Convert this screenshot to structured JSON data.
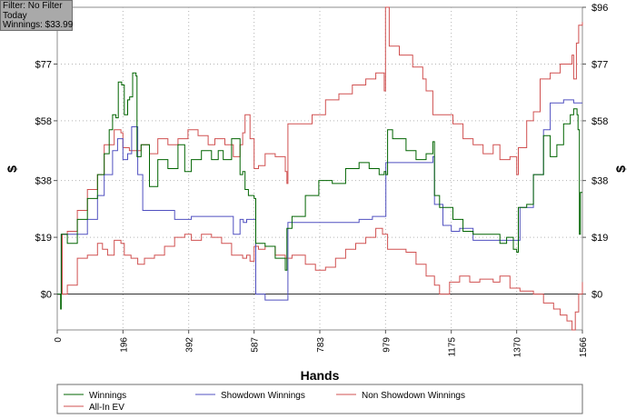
{
  "filter_box": {
    "line1": "Filter: No Filter",
    "line2": "Today",
    "line3": "Winnings: $33.99"
  },
  "chart_data": {
    "type": "line",
    "xlabel": "Hands",
    "ylabel": "$",
    "xlim": [
      0,
      1566
    ],
    "ylim": [
      -12,
      96
    ],
    "x_ticks": [
      0,
      196,
      392,
      587,
      783,
      979,
      1175,
      1370,
      1566
    ],
    "y_ticks": [
      0,
      19,
      38,
      58,
      77,
      96
    ],
    "y_tick_labels": [
      "$0",
      "$19",
      "$38",
      "$58",
      "$77",
      "$96"
    ],
    "grid": true,
    "legend_position": "bottom",
    "series": [
      {
        "name": "Winnings",
        "color": "#006400",
        "points": [
          [
            0,
            0
          ],
          [
            10,
            -5
          ],
          [
            12,
            20
          ],
          [
            30,
            17
          ],
          [
            60,
            25
          ],
          [
            90,
            32
          ],
          [
            120,
            40
          ],
          [
            140,
            47
          ],
          [
            155,
            55
          ],
          [
            165,
            60
          ],
          [
            175,
            59
          ],
          [
            182,
            71
          ],
          [
            192,
            70
          ],
          [
            200,
            60
          ],
          [
            210,
            65
          ],
          [
            216,
            66
          ],
          [
            225,
            74
          ],
          [
            235,
            73
          ],
          [
            238,
            46
          ],
          [
            250,
            50
          ],
          [
            275,
            36
          ],
          [
            300,
            45
          ],
          [
            330,
            42
          ],
          [
            360,
            50
          ],
          [
            380,
            41
          ],
          [
            400,
            45
          ],
          [
            430,
            48
          ],
          [
            460,
            45
          ],
          [
            480,
            48
          ],
          [
            495,
            45
          ],
          [
            520,
            52
          ],
          [
            545,
            40
          ],
          [
            553,
            41
          ],
          [
            560,
            35
          ],
          [
            570,
            33
          ],
          [
            587,
            32
          ],
          [
            592,
            17
          ],
          [
            620,
            16
          ],
          [
            650,
            12
          ],
          [
            680,
            8
          ],
          [
            685,
            22
          ],
          [
            700,
            26
          ],
          [
            740,
            33
          ],
          [
            780,
            38
          ],
          [
            820,
            37
          ],
          [
            860,
            42
          ],
          [
            900,
            44
          ],
          [
            930,
            42
          ],
          [
            960,
            40
          ],
          [
            975,
            41
          ],
          [
            980,
            40
          ],
          [
            985,
            55
          ],
          [
            1000,
            52
          ],
          [
            1040,
            48
          ],
          [
            1070,
            45
          ],
          [
            1100,
            47
          ],
          [
            1120,
            51
          ],
          [
            1125,
            33
          ],
          [
            1140,
            29
          ],
          [
            1180,
            25
          ],
          [
            1210,
            21
          ],
          [
            1240,
            20
          ],
          [
            1280,
            20
          ],
          [
            1320,
            17
          ],
          [
            1340,
            19
          ],
          [
            1360,
            15
          ],
          [
            1370,
            14
          ],
          [
            1375,
            29
          ],
          [
            1400,
            30
          ],
          [
            1420,
            40
          ],
          [
            1450,
            53
          ],
          [
            1470,
            46
          ],
          [
            1490,
            50
          ],
          [
            1510,
            57
          ],
          [
            1530,
            60
          ],
          [
            1540,
            62
          ],
          [
            1550,
            60
          ],
          [
            1553,
            55
          ],
          [
            1557,
            20
          ],
          [
            1560,
            34
          ],
          [
            1566,
            34
          ]
        ]
      },
      {
        "name": "Showdown Winnings",
        "color": "#5050c0",
        "points": [
          [
            0,
            0
          ],
          [
            12,
            20
          ],
          [
            30,
            20
          ],
          [
            60,
            20
          ],
          [
            90,
            25
          ],
          [
            120,
            33
          ],
          [
            140,
            40
          ],
          [
            165,
            48
          ],
          [
            180,
            52
          ],
          [
            192,
            52
          ],
          [
            196,
            45
          ],
          [
            210,
            47
          ],
          [
            222,
            56
          ],
          [
            235,
            56
          ],
          [
            240,
            40
          ],
          [
            255,
            28
          ],
          [
            300,
            28
          ],
          [
            350,
            25
          ],
          [
            400,
            26
          ],
          [
            450,
            26
          ],
          [
            500,
            26
          ],
          [
            525,
            20
          ],
          [
            545,
            25
          ],
          [
            555,
            24
          ],
          [
            565,
            25
          ],
          [
            575,
            25
          ],
          [
            585,
            25
          ],
          [
            592,
            0
          ],
          [
            620,
            -2
          ],
          [
            660,
            -2
          ],
          [
            685,
            -2
          ],
          [
            688,
            24
          ],
          [
            750,
            24
          ],
          [
            800,
            24
          ],
          [
            860,
            24
          ],
          [
            900,
            25
          ],
          [
            940,
            26
          ],
          [
            975,
            26
          ],
          [
            980,
            44
          ],
          [
            1080,
            44
          ],
          [
            1100,
            44
          ],
          [
            1120,
            46
          ],
          [
            1125,
            30
          ],
          [
            1150,
            23
          ],
          [
            1175,
            21
          ],
          [
            1200,
            22
          ],
          [
            1240,
            18
          ],
          [
            1300,
            18
          ],
          [
            1340,
            18
          ],
          [
            1370,
            18
          ],
          [
            1380,
            29
          ],
          [
            1420,
            40
          ],
          [
            1450,
            55
          ],
          [
            1470,
            64
          ],
          [
            1490,
            64
          ],
          [
            1510,
            65
          ],
          [
            1540,
            64
          ],
          [
            1566,
            64
          ]
        ]
      },
      {
        "name": "Non Showdown Winnings",
        "color": "#d05050",
        "points": [
          [
            0,
            0
          ],
          [
            12,
            0
          ],
          [
            30,
            3
          ],
          [
            60,
            12
          ],
          [
            90,
            13
          ],
          [
            120,
            17
          ],
          [
            135,
            15
          ],
          [
            150,
            13
          ],
          [
            170,
            18
          ],
          [
            190,
            17
          ],
          [
            200,
            13
          ],
          [
            220,
            12
          ],
          [
            240,
            10
          ],
          [
            260,
            12
          ],
          [
            290,
            13
          ],
          [
            320,
            16
          ],
          [
            350,
            19
          ],
          [
            380,
            20
          ],
          [
            400,
            18
          ],
          [
            430,
            20
          ],
          [
            460,
            19
          ],
          [
            490,
            17
          ],
          [
            520,
            13
          ],
          [
            553,
            12
          ],
          [
            565,
            13
          ],
          [
            575,
            11
          ],
          [
            587,
            16
          ],
          [
            600,
            15
          ],
          [
            620,
            16
          ],
          [
            650,
            13
          ],
          [
            680,
            12
          ],
          [
            700,
            13
          ],
          [
            740,
            10
          ],
          [
            770,
            8
          ],
          [
            800,
            9
          ],
          [
            830,
            12
          ],
          [
            860,
            15
          ],
          [
            890,
            17
          ],
          [
            920,
            19
          ],
          [
            950,
            22
          ],
          [
            970,
            20
          ],
          [
            985,
            15
          ],
          [
            1000,
            15
          ],
          [
            1040,
            14
          ],
          [
            1070,
            10
          ],
          [
            1100,
            6
          ],
          [
            1125,
            3
          ],
          [
            1140,
            0
          ],
          [
            1170,
            4
          ],
          [
            1200,
            6
          ],
          [
            1230,
            4
          ],
          [
            1260,
            5
          ],
          [
            1300,
            4
          ],
          [
            1320,
            6
          ],
          [
            1350,
            2
          ],
          [
            1370,
            2
          ],
          [
            1380,
            1
          ],
          [
            1420,
            0
          ],
          [
            1450,
            -3
          ],
          [
            1480,
            -5
          ],
          [
            1500,
            -7
          ],
          [
            1520,
            -9
          ],
          [
            1535,
            -12
          ],
          [
            1545,
            -6
          ],
          [
            1555,
            0
          ],
          [
            1566,
            4
          ]
        ]
      },
      {
        "name": "All-In EV",
        "color": "#d05050",
        "points": [
          [
            0,
            0
          ],
          [
            12,
            0
          ],
          [
            15,
            20
          ],
          [
            30,
            21
          ],
          [
            60,
            28
          ],
          [
            90,
            35
          ],
          [
            120,
            40
          ],
          [
            140,
            50
          ],
          [
            155,
            50
          ],
          [
            170,
            55
          ],
          [
            190,
            54
          ],
          [
            196,
            49
          ],
          [
            215,
            48
          ],
          [
            238,
            48
          ],
          [
            250,
            50
          ],
          [
            275,
            47
          ],
          [
            300,
            52
          ],
          [
            330,
            50
          ],
          [
            360,
            52
          ],
          [
            390,
            55
          ],
          [
            420,
            53
          ],
          [
            450,
            50
          ],
          [
            470,
            52
          ],
          [
            500,
            50
          ],
          [
            525,
            46
          ],
          [
            545,
            50
          ],
          [
            553,
            54
          ],
          [
            560,
            60
          ],
          [
            575,
            52
          ],
          [
            587,
            42
          ],
          [
            600,
            43
          ],
          [
            620,
            47
          ],
          [
            650,
            46
          ],
          [
            680,
            41
          ],
          [
            685,
            37
          ],
          [
            688,
            57
          ],
          [
            720,
            57
          ],
          [
            760,
            60
          ],
          [
            800,
            65
          ],
          [
            840,
            67
          ],
          [
            880,
            70
          ],
          [
            920,
            72
          ],
          [
            950,
            74
          ],
          [
            975,
            68
          ],
          [
            979,
            96
          ],
          [
            990,
            83
          ],
          [
            1020,
            80
          ],
          [
            1060,
            76
          ],
          [
            1090,
            72
          ],
          [
            1100,
            68
          ],
          [
            1120,
            60
          ],
          [
            1150,
            60
          ],
          [
            1180,
            57
          ],
          [
            1210,
            52
          ],
          [
            1240,
            50
          ],
          [
            1270,
            47
          ],
          [
            1300,
            50
          ],
          [
            1320,
            45
          ],
          [
            1350,
            46
          ],
          [
            1370,
            40
          ],
          [
            1375,
            49
          ],
          [
            1400,
            58
          ],
          [
            1420,
            61
          ],
          [
            1440,
            72
          ],
          [
            1470,
            74
          ],
          [
            1500,
            77
          ],
          [
            1525,
            77
          ],
          [
            1535,
            80
          ],
          [
            1540,
            72
          ],
          [
            1548,
            84
          ],
          [
            1555,
            90
          ],
          [
            1566,
            91
          ]
        ]
      }
    ]
  }
}
